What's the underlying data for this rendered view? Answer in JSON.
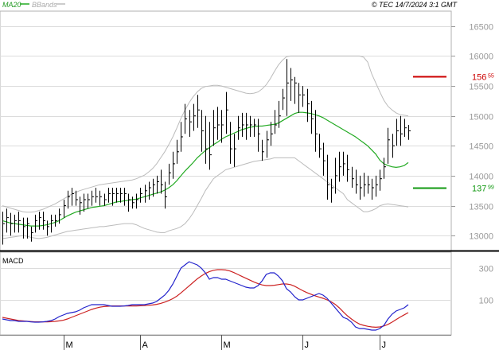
{
  "header": {
    "legend_ma": "MA20",
    "legend_bb": "BBands",
    "copyright": "© TEC 14/7/2024 3:1 GMT"
  },
  "colors": {
    "price": "#000000",
    "ma20": "#22aa22",
    "bbands": "#bbbbbb",
    "grid": "#dcdcdc",
    "resistance": "#cc0000",
    "support": "#119911",
    "macd": "#2222cc",
    "signal": "#cc2222",
    "axis_text": "#999999"
  },
  "chart_data": [
    {
      "type": "line",
      "title": "",
      "ylabel": "",
      "ylim": [
        12750,
        16750
      ],
      "y_ticks": [
        {
          "value": 16500,
          "label": "16500"
        },
        {
          "value": 16000,
          "label": "16000"
        },
        {
          "value": 15500,
          "label": "15500"
        },
        {
          "value": 15000,
          "label": "15000"
        },
        {
          "value": 14500,
          "label": "14500"
        },
        {
          "value": 14000,
          "label": "14000"
        },
        {
          "value": 13500,
          "label": "13500"
        },
        {
          "value": 13000,
          "label": "13000"
        }
      ],
      "x_month_labels": [
        "M",
        "A",
        "M",
        "J",
        "J"
      ],
      "levels": [
        {
          "name": "resistance",
          "value": 15655,
          "label_main": "156",
          "label_sup": "55"
        },
        {
          "name": "support",
          "value": 13799,
          "label_main": "137",
          "label_sup": "99"
        }
      ],
      "series": [
        {
          "name": "Price",
          "style": "ohlc-bars",
          "high": [
            13400,
            13450,
            13380,
            13350,
            13400,
            13300,
            13300,
            13150,
            13350,
            13400,
            13400,
            13250,
            13350,
            13350,
            13450,
            13600,
            13750,
            13800,
            13750,
            13650,
            13700,
            13700,
            13750,
            13800,
            13750,
            13700,
            13800,
            13800,
            13800,
            13800,
            13800,
            13700,
            13650,
            13700,
            13800,
            13850,
            13900,
            13950,
            14000,
            14100,
            13900,
            14200,
            14400,
            14600,
            14900,
            15200,
            15100,
            15200,
            15350,
            15100,
            15000,
            14900,
            15100,
            15150,
            15100,
            15400,
            14900,
            14700,
            15000,
            15050,
            15050,
            15000,
            14950,
            14950,
            14600,
            14750,
            14900,
            15100,
            15250,
            15450,
            15950,
            15800,
            15650,
            15550,
            15500,
            15450,
            15250,
            15100,
            14700,
            14550,
            14350,
            13950,
            14300,
            14400,
            14400,
            14350,
            14150,
            14100,
            14000,
            14050,
            14000,
            13950,
            14000,
            14100,
            14300,
            14800,
            14700,
            14950,
            15000,
            14950,
            14850
          ],
          "low": [
            12850,
            13050,
            13000,
            13050,
            13050,
            12950,
            12950,
            12900,
            13050,
            13100,
            13100,
            13000,
            13050,
            13150,
            13200,
            13300,
            13450,
            13500,
            13500,
            13350,
            13400,
            13450,
            13500,
            13550,
            13500,
            13500,
            13550,
            13500,
            13550,
            13550,
            13500,
            13400,
            13450,
            13450,
            13550,
            13550,
            13600,
            13650,
            13700,
            13700,
            13450,
            13850,
            13950,
            14200,
            14400,
            14700,
            14650,
            14750,
            14800,
            14400,
            14200,
            14100,
            14500,
            14600,
            14550,
            14700,
            14200,
            14150,
            14600,
            14650,
            14600,
            14650,
            14650,
            14400,
            14250,
            14300,
            14500,
            14700,
            14800,
            15100,
            15000,
            15250,
            15200,
            15050,
            15150,
            14900,
            14700,
            14400,
            14300,
            14000,
            13600,
            13550,
            13700,
            13900,
            14000,
            13900,
            13800,
            13700,
            13600,
            13650,
            13700,
            13600,
            13650,
            13750,
            13950,
            14200,
            14300,
            14500,
            14500,
            14650,
            14600
          ],
          "close": [
            13200,
            13300,
            13200,
            13250,
            13250,
            13150,
            13200,
            13050,
            13250,
            13300,
            13250,
            13150,
            13250,
            13250,
            13350,
            13500,
            13650,
            13700,
            13600,
            13550,
            13600,
            13600,
            13650,
            13650,
            13650,
            13600,
            13700,
            13700,
            13700,
            13700,
            13700,
            13600,
            13550,
            13600,
            13700,
            13750,
            13800,
            13850,
            13900,
            13850,
            13650,
            14050,
            14200,
            14400,
            14650,
            14950,
            14900,
            15000,
            15100,
            14750,
            14450,
            14350,
            14800,
            14850,
            14850,
            15100,
            14450,
            14450,
            14800,
            14850,
            14850,
            14850,
            14850,
            14700,
            14400,
            14600,
            14700,
            14850,
            15000,
            15300,
            15550,
            15600,
            15550,
            15350,
            15350,
            15200,
            14950,
            14700,
            14450,
            14250,
            13850,
            13800,
            14000,
            14150,
            14200,
            14100,
            13950,
            13850,
            13800,
            13850,
            13850,
            13800,
            13850,
            13950,
            14150,
            14600,
            14500,
            14750,
            14700,
            14800,
            14750
          ]
        },
        {
          "name": "MA20",
          "values": [
            13250,
            13230,
            13210,
            13200,
            13190,
            13180,
            13170,
            13160,
            13160,
            13160,
            13170,
            13180,
            13200,
            13220,
            13250,
            13290,
            13330,
            13360,
            13390,
            13410,
            13430,
            13450,
            13470,
            13480,
            13490,
            13500,
            13520,
            13540,
            13560,
            13570,
            13580,
            13590,
            13600,
            13610,
            13630,
            13650,
            13670,
            13690,
            13710,
            13730,
            13760,
            13800,
            13850,
            13920,
            14000,
            14080,
            14150,
            14220,
            14300,
            14360,
            14420,
            14470,
            14520,
            14560,
            14610,
            14650,
            14680,
            14710,
            14740,
            14770,
            14790,
            14810,
            14820,
            14830,
            14830,
            14840,
            14850,
            14860,
            14880,
            14920,
            14960,
            15000,
            15040,
            15060,
            15060,
            15050,
            15040,
            15020,
            15000,
            14970,
            14930,
            14890,
            14850,
            14810,
            14770,
            14730,
            14690,
            14650,
            14600,
            14550,
            14500,
            14430,
            14360,
            14260,
            14200,
            14170,
            14150,
            14140,
            14150,
            14170,
            14220
          ]
        },
        {
          "name": "BBands-upper",
          "values": [
            13500,
            13480,
            13460,
            13440,
            13420,
            13400,
            13390,
            13390,
            13400,
            13420,
            13440,
            13470,
            13500,
            13530,
            13570,
            13610,
            13650,
            13690,
            13720,
            13750,
            13770,
            13790,
            13810,
            13830,
            13850,
            13860,
            13870,
            13880,
            13890,
            13900,
            13910,
            13920,
            13930,
            13950,
            13980,
            14010,
            14060,
            14120,
            14200,
            14300,
            14400,
            14520,
            14650,
            14800,
            14960,
            15100,
            15220,
            15320,
            15400,
            15460,
            15490,
            15500,
            15510,
            15510,
            15500,
            15480,
            15460,
            15440,
            15420,
            15400,
            15380,
            15370,
            15380,
            15400,
            15450,
            15520,
            15620,
            15740,
            15850,
            15930,
            15990,
            16000,
            16000,
            16000,
            16000,
            16000,
            16000,
            16000,
            16000,
            16000,
            16000,
            16000,
            16000,
            16000,
            16000,
            16000,
            16000,
            16000,
            16000,
            15980,
            15900,
            15700,
            15550,
            15400,
            15260,
            15160,
            15100,
            15050,
            15020,
            15010,
            15000
          ]
        },
        {
          "name": "BBands-lower",
          "values": [
            12950,
            12960,
            12970,
            12980,
            12990,
            13000,
            12990,
            12970,
            12960,
            12950,
            12960,
            12970,
            12990,
            13010,
            13030,
            13050,
            13070,
            13080,
            13090,
            13100,
            13110,
            13120,
            13130,
            13140,
            13150,
            13150,
            13160,
            13170,
            13180,
            13190,
            13200,
            13200,
            13200,
            13180,
            13150,
            13120,
            13100,
            13080,
            13060,
            13050,
            13050,
            13080,
            13100,
            13120,
            13150,
            13200,
            13280,
            13380,
            13500,
            13620,
            13750,
            13850,
            13950,
            14000,
            14050,
            14100,
            14120,
            14140,
            14160,
            14180,
            14200,
            14220,
            14240,
            14250,
            14260,
            14270,
            14280,
            14300,
            14300,
            14300,
            14300,
            14300,
            14300,
            14250,
            14200,
            14150,
            14100,
            14050,
            14000,
            13950,
            13900,
            13850,
            13800,
            13750,
            13700,
            13600,
            13550,
            13500,
            13450,
            13400,
            13400,
            13420,
            13450,
            13500,
            13520,
            13530,
            13520,
            13510,
            13500,
            13490,
            13480
          ]
        }
      ]
    },
    {
      "type": "line",
      "title": "MACD",
      "ylim": [
        -120,
        400
      ],
      "y_ticks": [
        {
          "value": 300,
          "label": "300"
        },
        {
          "value": 100,
          "label": "100"
        }
      ],
      "series": [
        {
          "name": "MACD",
          "values": [
            -20,
            -25,
            -30,
            -30,
            -35,
            -35,
            -35,
            -38,
            -40,
            -40,
            -38,
            -35,
            -30,
            -20,
            -5,
            5,
            15,
            20,
            25,
            35,
            50,
            60,
            70,
            70,
            70,
            70,
            65,
            60,
            60,
            60,
            62,
            65,
            70,
            70,
            70,
            70,
            75,
            80,
            90,
            110,
            130,
            160,
            200,
            250,
            300,
            320,
            340,
            330,
            320,
            300,
            270,
            230,
            240,
            240,
            230,
            230,
            220,
            210,
            200,
            190,
            180,
            175,
            175,
            190,
            220,
            260,
            270,
            270,
            250,
            220,
            170,
            150,
            120,
            100,
            100,
            110,
            120,
            130,
            140,
            130,
            110,
            80,
            50,
            20,
            -10,
            -20,
            -40,
            -70,
            -80,
            -80,
            -85,
            -90,
            -90,
            -80,
            -60,
            -20,
            10,
            30,
            40,
            50,
            70
          ]
        },
        {
          "name": "Signal",
          "values": [
            -10,
            -15,
            -20,
            -25,
            -30,
            -32,
            -34,
            -36,
            -38,
            -38,
            -38,
            -38,
            -37,
            -35,
            -32,
            -28,
            -20,
            -10,
            0,
            10,
            20,
            30,
            40,
            48,
            54,
            58,
            60,
            62,
            62,
            62,
            62,
            62,
            62,
            62,
            63,
            64,
            66,
            68,
            72,
            78,
            86,
            96,
            108,
            124,
            144,
            166,
            188,
            210,
            232,
            250,
            266,
            278,
            286,
            290,
            290,
            288,
            282,
            272,
            260,
            248,
            236,
            224,
            212,
            202,
            194,
            190,
            190,
            192,
            196,
            200,
            200,
            196,
            186,
            172,
            158,
            146,
            136,
            126,
            118,
            110,
            100,
            88,
            72,
            50,
            24,
            0,
            -20,
            -38,
            -52,
            -60,
            -66,
            -70,
            -72,
            -70,
            -64,
            -54,
            -40,
            -24,
            -8,
            6,
            20
          ]
        }
      ]
    }
  ]
}
